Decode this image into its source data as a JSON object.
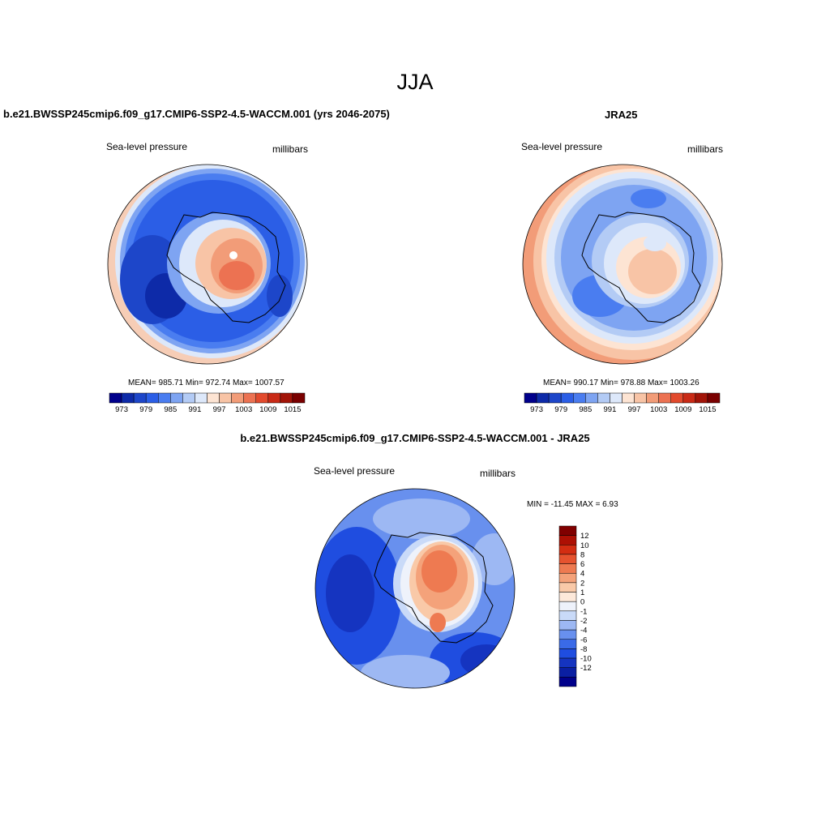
{
  "season_title": "JJA",
  "panels": [
    {
      "id": "model",
      "title": "b.e21.BWSSP245cmip6.f09_g17.CMIP6-SSP2-4.5-WACCM.001 (yrs 2046-2075)",
      "variable": "Sea-level pressure",
      "units": "millibars",
      "stats": {
        "mean": "985.71",
        "min": "972.74",
        "max": "1007.57"
      },
      "stats_text": "MEAN= 985.71  Min= 972.74  Max= 1007.57"
    },
    {
      "id": "obs",
      "title": "JRA25",
      "variable": "Sea-level pressure",
      "units": "millibars",
      "stats": {
        "mean": "990.17",
        "min": "978.88",
        "max": "1003.26"
      },
      "stats_text": "MEAN= 990.17  Min= 978.88  Max= 1003.26"
    },
    {
      "id": "diff",
      "title": "b.e21.BWSSP245cmip6.f09_g17.CMIP6-SSP2-4.5-WACCM.001 - JRA25",
      "variable": "Sea-level pressure",
      "units": "millibars",
      "stats": {
        "min": "-11.45",
        "max": "6.93"
      },
      "stats_text": "MIN = -11.45 MAX =   6.93"
    }
  ],
  "abs_colorbar": {
    "colors": [
      "#00008b",
      "#0d2aa8",
      "#1d46c9",
      "#2b5ee6",
      "#4a7df0",
      "#7ea4f2",
      "#b3cbf5",
      "#dde8fa",
      "#fde4d3",
      "#f8c4a6",
      "#f29c78",
      "#ec7252",
      "#e24a2d",
      "#c92a16",
      "#a21408",
      "#7a0000"
    ],
    "tick_labels": [
      "973",
      "979",
      "985",
      "991",
      "997",
      "1003",
      "1009",
      "1015"
    ]
  },
  "diff_colorbar": {
    "colors": [
      "#00008b",
      "#0a1fa3",
      "#1534c0",
      "#1f4de0",
      "#3a6ae8",
      "#6890ee",
      "#9db8f3",
      "#c9daf8",
      "#eef2fb",
      "#fde9da",
      "#f9c9a8",
      "#f4a27a",
      "#ee7a51",
      "#e6532f",
      "#d32d12",
      "#ad1004",
      "#800000"
    ],
    "tick_labels": [
      "12",
      "10",
      "8",
      "6",
      "4",
      "2",
      "1",
      "0",
      "-1",
      "-2",
      "-4",
      "-6",
      "-8",
      "-10",
      "-12"
    ]
  }
}
